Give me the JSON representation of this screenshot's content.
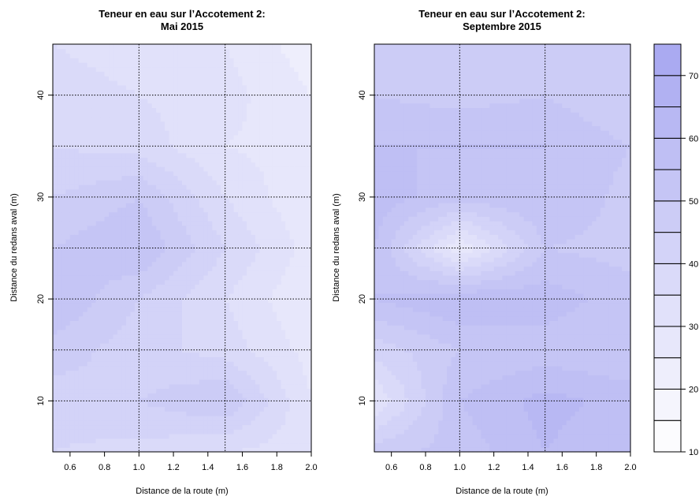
{
  "colors": {
    "low": "#ffffff",
    "high": "#a7a7f0",
    "grid": "#000000"
  },
  "chart_data": [
    {
      "type": "heatmap",
      "title": "Teneur en eau sur l’Accotement 2:",
      "subtitle": "Mai 2015",
      "xlabel": "Distance de la route (m)",
      "ylabel": "Distance du redans aval (m)",
      "xlim": [
        0.5,
        2.0
      ],
      "ylim": [
        5,
        45
      ],
      "xticks": [
        "0.6",
        "0.8",
        "1.0",
        "1.2",
        "1.4",
        "1.6",
        "1.8",
        "2.0"
      ],
      "yticks": [
        "10",
        "20",
        "30",
        "40"
      ],
      "grid_x": [
        1.0,
        1.5
      ],
      "grid_y": [
        10,
        15,
        20,
        25,
        30,
        35,
        40
      ],
      "x": [
        0.5,
        1.0,
        1.5,
        2.0
      ],
      "y": [
        5,
        10,
        15,
        20,
        25,
        30,
        35,
        40,
        45
      ],
      "z": [
        [
          40,
          38,
          35,
          32
        ],
        [
          42,
          45,
          50,
          30
        ],
        [
          48,
          42,
          38,
          28
        ],
        [
          55,
          45,
          35,
          25
        ],
        [
          50,
          55,
          40,
          28
        ],
        [
          45,
          50,
          35,
          25
        ],
        [
          40,
          38,
          30,
          28
        ],
        [
          38,
          35,
          32,
          25
        ],
        [
          35,
          32,
          30,
          22
        ]
      ]
    },
    {
      "type": "heatmap",
      "title": "Teneur en eau sur l’Accotement 2:",
      "subtitle": "Septembre 2015",
      "xlabel": "Distance de la route (m)",
      "ylabel": "Distance du redans aval (m)",
      "xlim": [
        0.5,
        2.0
      ],
      "ylim": [
        5,
        45
      ],
      "xticks": [
        "0.6",
        "0.8",
        "1.0",
        "1.2",
        "1.4",
        "1.6",
        "1.8",
        "2.0"
      ],
      "yticks": [
        "10",
        "20",
        "30",
        "40"
      ],
      "grid_x": [
        1.0,
        1.5
      ],
      "grid_y": [
        10,
        15,
        20,
        25,
        30,
        35,
        40
      ],
      "x": [
        0.5,
        1.0,
        1.5,
        2.0
      ],
      "y": [
        5,
        10,
        15,
        20,
        25,
        30,
        35,
        40,
        45
      ],
      "z": [
        [
          48,
          52,
          60,
          55
        ],
        [
          30,
          55,
          62,
          58
        ],
        [
          42,
          50,
          52,
          50
        ],
        [
          55,
          60,
          58,
          52
        ],
        [
          55,
          25,
          50,
          48
        ],
        [
          58,
          52,
          55,
          48
        ],
        [
          55,
          55,
          55,
          50
        ],
        [
          50,
          48,
          50,
          45
        ],
        [
          48,
          45,
          48,
          45
        ]
      ]
    }
  ],
  "colorbar": {
    "min": 10,
    "max": 75,
    "breaks": [
      10,
      15,
      20,
      25,
      30,
      35,
      40,
      45,
      50,
      55,
      60,
      65,
      70,
      75
    ],
    "tick_labels": [
      "10",
      "20",
      "30",
      "40",
      "50",
      "60",
      "70"
    ]
  }
}
